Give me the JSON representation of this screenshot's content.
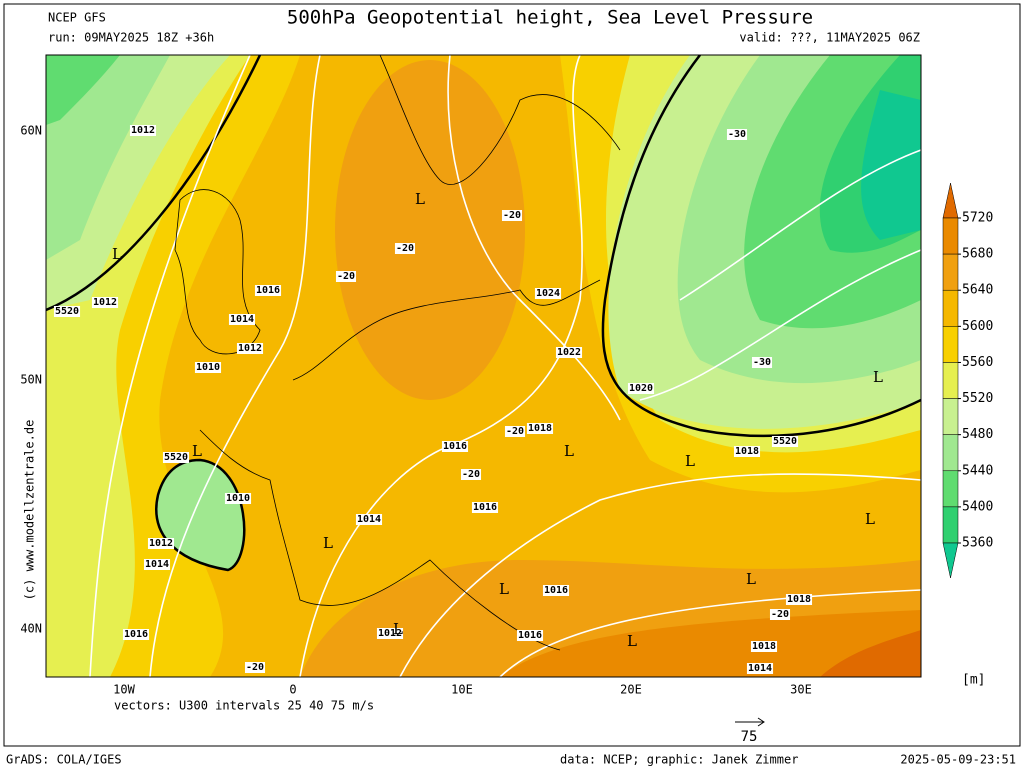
{
  "header": {
    "model": "NCEP GFS",
    "title": "500hPa Geopotential height, Sea Level Pressure",
    "run": "run: 09MAY2025 18Z +36h",
    "valid": "valid: ???, 11MAY2025 06Z"
  },
  "map": {
    "lon_labels": [
      "10W",
      "0",
      "10E",
      "20E",
      "30E"
    ],
    "lat_labels": [
      "60N",
      "50N",
      "40N"
    ],
    "vectors_note": "vectors: U300 intervals 25 40 75 m/s",
    "pressure_labels": [
      "1012",
      "1012",
      "1016",
      "1014",
      "1012",
      "1010",
      "1010",
      "1012",
      "1014",
      "1016",
      "1014",
      "1016",
      "1016",
      "1018",
      "1022",
      "1024",
      "1020",
      "1018",
      "1016",
      "1016",
      "1018",
      "1018",
      "1014",
      "1012"
    ],
    "height_labels": [
      "5520",
      "5520",
      "5520"
    ],
    "temperature_labels": [
      "-20",
      "-20",
      "-20",
      "-20",
      "-20",
      "-20",
      "-20",
      "-30",
      "-30"
    ],
    "lows": [
      "L",
      "L",
      "L",
      "L",
      "L",
      "L",
      "L",
      "L",
      "L",
      "L",
      "L",
      "L"
    ]
  },
  "colorbar": {
    "levels": [
      5720,
      5680,
      5640,
      5600,
      5560,
      5520,
      5480,
      5440,
      5400,
      5360
    ],
    "colors": [
      "#e06a00",
      "#ea8a00",
      "#f0a010",
      "#f5b800",
      "#f8d000",
      "#e6ef50",
      "#c8f090",
      "#a0e890",
      "#60dc70",
      "#30d070",
      "#10c890"
    ],
    "unit": "[m]"
  },
  "scale_arrow": "75",
  "watermark": "(c)  www.modellzentrale.de",
  "footer": {
    "left": "GrADS: COLA/IGES",
    "credit": "data: NCEP; graphic: Janek Zimmer",
    "timestamp": "2025-05-09-23:51"
  }
}
